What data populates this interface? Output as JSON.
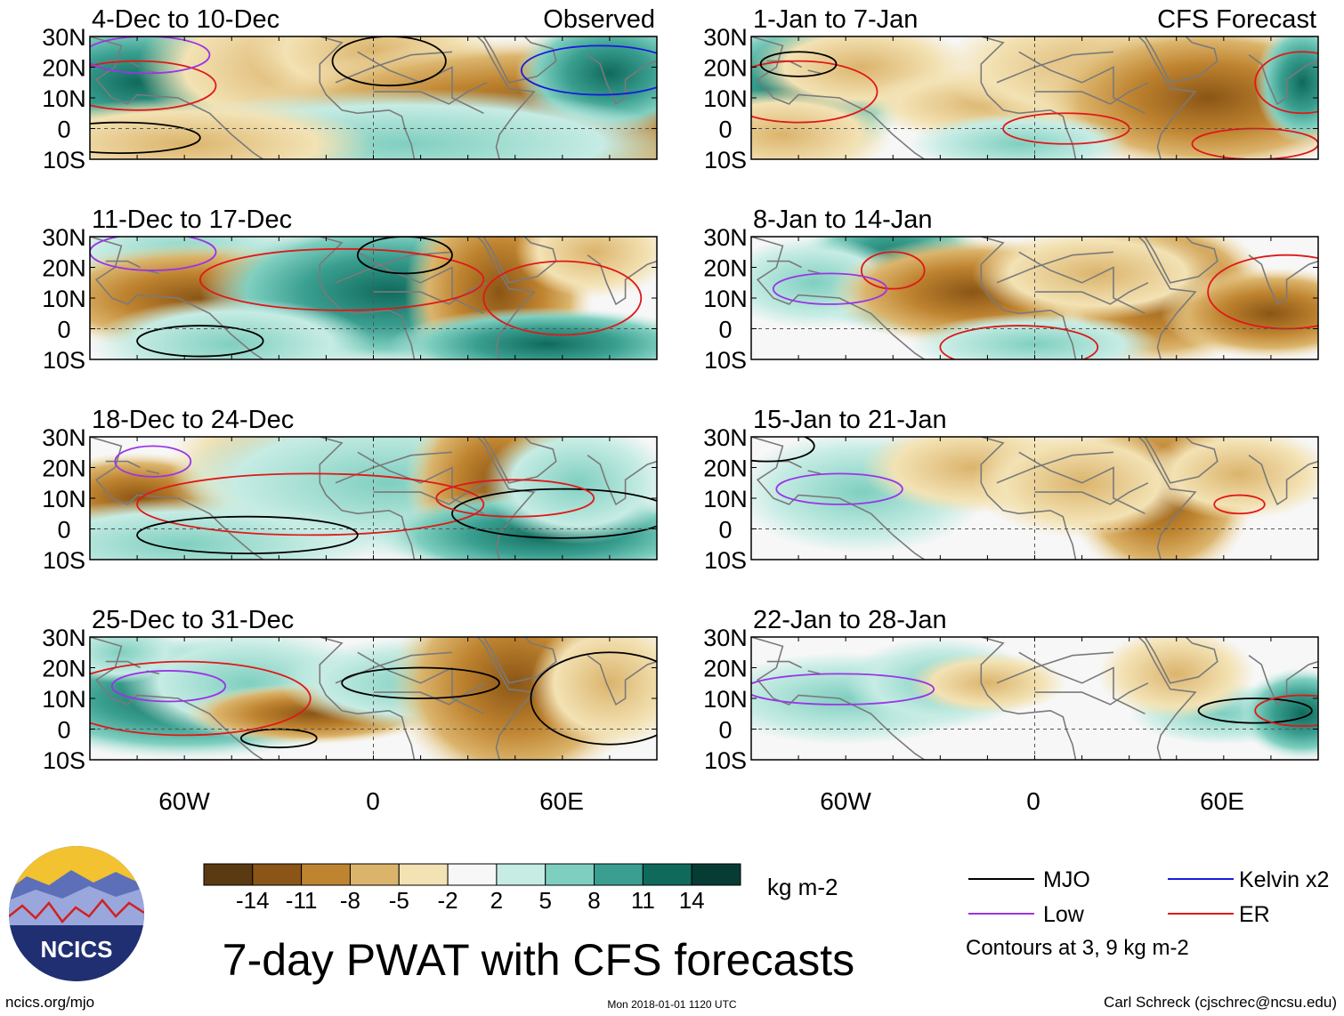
{
  "chart_data": {
    "type": "heatmap",
    "title": "7-day PWAT with CFS forecasts",
    "units": "kg m-2",
    "section_labels": {
      "observed": "Observed",
      "forecast": "CFS Forecast"
    },
    "lat_ticks": [
      "30N",
      "20N",
      "10N",
      "0",
      "10S"
    ],
    "lon_ticks": [
      "60W",
      "0",
      "60E"
    ],
    "lat_range": [
      -10,
      30
    ],
    "lon_range": [
      -90,
      90
    ],
    "observed_panels": [
      {
        "period": "4-Dec to 10-Dec"
      },
      {
        "period": "11-Dec to 17-Dec"
      },
      {
        "period": "18-Dec to 24-Dec"
      },
      {
        "period": "25-Dec to 31-Dec"
      }
    ],
    "forecast_panels": [
      {
        "period": "1-Jan to 7-Jan"
      },
      {
        "period": "8-Jan to 14-Jan"
      },
      {
        "period": "15-Jan to 21-Jan"
      },
      {
        "period": "22-Jan to 28-Jan"
      }
    ],
    "colorbar": {
      "ticks": [
        "-14",
        "-11",
        "-8",
        "-5",
        "-2",
        "2",
        "5",
        "8",
        "11",
        "14"
      ],
      "colors": [
        "#5a3a12",
        "#8a5516",
        "#bf8430",
        "#dbb46c",
        "#f3e2b4",
        "#f7f7f7",
        "#c6ece4",
        "#7fcfc0",
        "#3a9f90",
        "#0f6a5c",
        "#063c34"
      ]
    },
    "legend": [
      {
        "label": "MJO",
        "color": "#000000"
      },
      {
        "label": "Kelvin x2",
        "color": "#1a1adc"
      },
      {
        "label": "Low",
        "color": "#9a35e6"
      },
      {
        "label": "ER",
        "color": "#e01818"
      }
    ],
    "contour_note": "Contours at 3, 9 kg m-2"
  },
  "footer": {
    "logo_text": "NCICS",
    "website": "ncics.org/mjo",
    "timestamp": "Mon 2018-01-01 1120 UTC",
    "credit": "Carl Schreck (cjschrec@ncsu.edu)"
  }
}
